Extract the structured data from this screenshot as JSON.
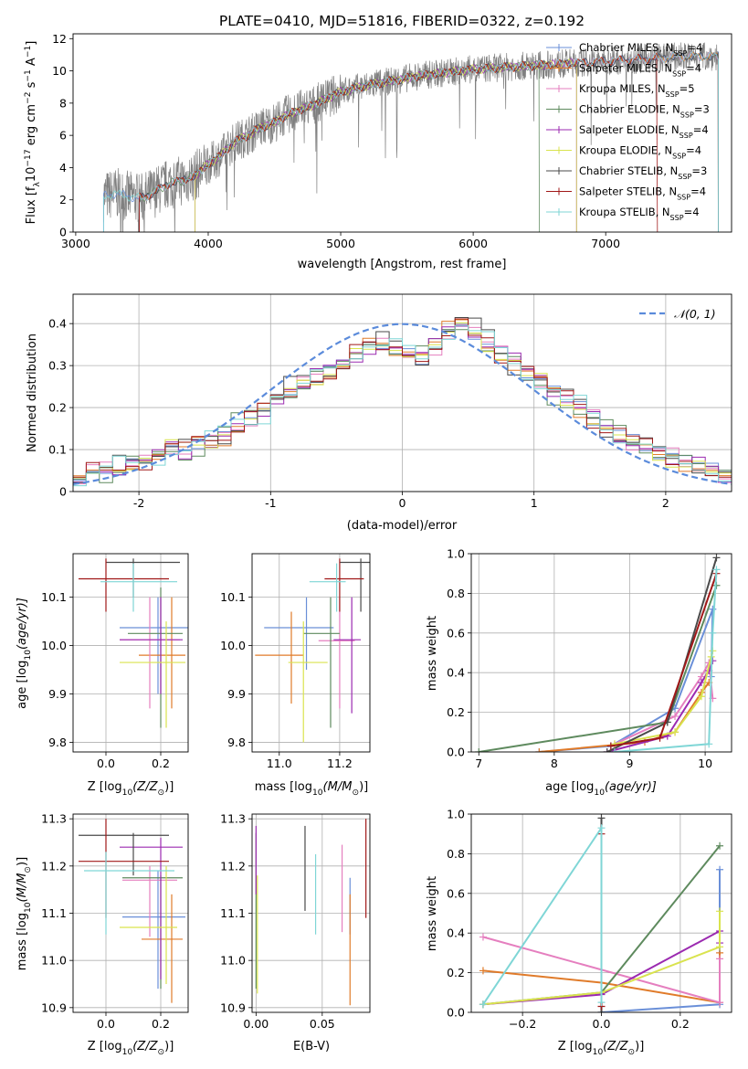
{
  "colors": [
    "#6a8fd8",
    "#e07b2a",
    "#e57fbf",
    "#5e8a5e",
    "#9b2ab0",
    "#d9e34e",
    "#4a4a4a",
    "#a01818",
    "#7fd6d6"
  ],
  "chart_data": [
    {
      "id": "spectrum",
      "type": "line",
      "title": "PLATE=0410, MJD=51816, FIBERID=0322, z=0.192",
      "xlabel": "wavelength [Angstrom, rest frame]",
      "ylabel_parts": {
        "a": "Flux [f",
        "b": "λ",
        "c": "10",
        "d": "−17",
        "e": " erg cm",
        "f": "−2",
        "g": " s",
        "h": "−1",
        "i": " A",
        "j": "−1",
        "k": "]"
      },
      "xlim": [
        2980,
        7950
      ],
      "ylim": [
        0,
        12.3
      ],
      "xticks": [
        3000,
        4000,
        5000,
        6000,
        7000
      ],
      "yticks": [
        0,
        2,
        4,
        6,
        8,
        10,
        12
      ],
      "legend": [
        {
          "name": "Chabrier MILES, N",
          "sub": "SSP",
          "tail": "=4"
        },
        {
          "name": "Salpeter MILES, N",
          "sub": "SSP",
          "tail": "=4"
        },
        {
          "name": "Kroupa MILES, N",
          "sub": "SSP",
          "tail": "=5"
        },
        {
          "name": "Chabrier ELODIE, N",
          "sub": "SSP",
          "tail": "=3"
        },
        {
          "name": "Salpeter ELODIE, N",
          "sub": "SSP",
          "tail": "=4"
        },
        {
          "name": "Kroupa ELODIE, N",
          "sub": "SSP",
          "tail": "=4"
        },
        {
          "name": "Chabrier STELIB, N",
          "sub": "SSP",
          "tail": "=3"
        },
        {
          "name": "Salpeter STELIB, N",
          "sub": "SSP",
          "tail": "=4"
        },
        {
          "name": "Kroupa STELIB, N",
          "sub": "SSP",
          "tail": "=4"
        }
      ],
      "model_x": [
        3200,
        3300,
        3400,
        3500,
        3600,
        3700,
        3800,
        3900,
        4000,
        4100,
        4200,
        4300,
        4400,
        4500,
        4600,
        4700,
        4800,
        4900,
        5000,
        5200,
        5400,
        5600,
        5800,
        6000,
        6200,
        6400,
        6600,
        6800,
        7000,
        7200,
        7400,
        7600,
        7800
      ],
      "model_y": [
        2.2,
        2.4,
        2.2,
        2.1,
        2.5,
        3.0,
        3.2,
        3.5,
        4.2,
        4.8,
        5.6,
        6.0,
        6.5,
        6.8,
        7.3,
        7.6,
        7.9,
        8.3,
        8.7,
        9.1,
        9.4,
        9.7,
        9.9,
        10.1,
        10.2,
        10.3,
        10.4,
        10.5,
        10.6,
        10.7,
        10.8,
        10.9,
        10.9
      ],
      "model_start": [
        3210,
        3480,
        3480,
        3480,
        3900,
        3900,
        3480,
        3480,
        3210
      ],
      "model_end": [
        7850,
        7850,
        7850,
        6500,
        6780,
        6780,
        7850,
        7390,
        7850
      ]
    },
    {
      "id": "residuals",
      "type": "histogram",
      "xlabel": "(data-model)/error",
      "ylabel": "Normed distribution",
      "legend": [
        {
          "name": "𝒩(0, 1)"
        }
      ],
      "xlim": [
        -2.5,
        2.5
      ],
      "ylim": [
        0,
        0.47
      ],
      "xticks": [
        -2,
        -1,
        0,
        1,
        2
      ],
      "yticks": [
        0,
        0.1,
        0.2,
        0.3,
        0.4
      ],
      "bin_width": 0.1,
      "bin_start": -2.5,
      "base_counts": [
        0.045,
        0.05,
        0.05,
        0.055,
        0.065,
        0.075,
        0.09,
        0.11,
        0.1,
        0.11,
        0.12,
        0.135,
        0.155,
        0.18,
        0.19,
        0.22,
        0.235,
        0.26,
        0.27,
        0.29,
        0.31,
        0.33,
        0.35,
        0.35,
        0.335,
        0.33,
        0.32,
        0.35,
        0.38,
        0.39,
        0.38,
        0.355,
        0.33,
        0.31,
        0.285,
        0.265,
        0.235,
        0.22,
        0.2,
        0.175,
        0.15,
        0.135,
        0.12,
        0.105,
        0.09,
        0.08,
        0.07,
        0.06,
        0.05,
        0.04
      ]
    },
    {
      "id": "age_vs_Z",
      "type": "scatter",
      "xlabel_parts": {
        "a": "Z [log",
        "b": "10",
        "c": "(Z/Z",
        "d": "⊙",
        "e": ")]"
      },
      "ylabel_parts": {
        "a": "age  [log",
        "b": "10",
        "c": "(age/yr)]"
      },
      "xlim": [
        -0.12,
        0.3
      ],
      "ylim": [
        9.78,
        10.19
      ],
      "xticks": [
        0.0,
        0.2
      ],
      "xticklabels": [
        "0.0",
        "0.2"
      ],
      "yticks": [
        9.8,
        9.9,
        10.0,
        10.1
      ],
      "yticklabels": [
        "9.8",
        "9.9",
        "10.0",
        "10.1"
      ],
      "points": [
        {
          "x": 0.19,
          "y": 10.037,
          "xe": [
            0.05,
            0.3
          ],
          "ye": [
            9.9,
            10.1
          ]
        },
        {
          "x": 0.24,
          "y": 9.98,
          "xe": [
            0.12,
            0.29
          ],
          "ye": [
            9.87,
            10.1
          ]
        },
        {
          "x": 0.16,
          "y": 10.012,
          "xe": [
            0.05,
            0.27
          ],
          "ye": [
            9.87,
            10.1
          ]
        },
        {
          "x": 0.2,
          "y": 10.025,
          "xe": [
            0.08,
            0.28
          ],
          "ye": [
            9.83,
            10.12
          ]
        },
        {
          "x": 0.2,
          "y": 10.012,
          "xe": [
            0.05,
            0.28
          ],
          "ye": [
            9.9,
            10.1
          ]
        },
        {
          "x": 0.22,
          "y": 9.965,
          "xe": [
            0.05,
            0.29
          ],
          "ye": [
            9.83,
            10.05
          ]
        },
        {
          "x": 0.1,
          "y": 10.172,
          "xe": [
            0.0,
            0.27
          ],
          "ye": [
            10.1,
            10.18
          ]
        },
        {
          "x": 0.0,
          "y": 10.138,
          "xe": [
            -0.1,
            0.23
          ],
          "ye": [
            10.07,
            10.18
          ]
        },
        {
          "x": 0.1,
          "y": 10.132,
          "xe": [
            -0.02,
            0.26
          ],
          "ye": [
            10.07,
            10.17
          ]
        }
      ]
    },
    {
      "id": "age_vs_mass",
      "type": "scatter",
      "xlabel_parts": {
        "a": "mass [log",
        "b": "10",
        "c": "(M/M",
        "d": "⊙",
        "e": ")]"
      },
      "xlim": [
        10.91,
        11.3
      ],
      "ylim": [
        9.78,
        10.19
      ],
      "xticks": [
        11.0,
        11.2
      ],
      "xticklabels": [
        "11.0",
        "11.2"
      ],
      "yticks": [
        9.8,
        9.9,
        10.0,
        10.1
      ],
      "yticklabels": [
        "9.8",
        "9.9",
        "10.0",
        "10.1"
      ],
      "points": [
        {
          "x": 11.09,
          "y": 10.037,
          "xe": [
            10.95,
            11.18
          ],
          "ye": [
            9.95,
            10.1
          ]
        },
        {
          "x": 11.04,
          "y": 9.98,
          "xe": [
            10.92,
            11.08
          ],
          "ye": [
            9.88,
            10.07
          ]
        },
        {
          "x": 11.2,
          "y": 10.01,
          "xe": [
            11.13,
            11.25
          ],
          "ye": [
            9.87,
            10.1
          ]
        },
        {
          "x": 11.17,
          "y": 10.025,
          "xe": [
            11.08,
            11.2
          ],
          "ye": [
            9.83,
            10.1
          ]
        },
        {
          "x": 11.24,
          "y": 10.012,
          "xe": [
            11.18,
            11.27
          ],
          "ye": [
            9.86,
            10.1
          ]
        },
        {
          "x": 11.08,
          "y": 9.965,
          "xe": [
            11.03,
            11.16
          ],
          "ye": [
            9.8,
            10.05
          ]
        },
        {
          "x": 11.27,
          "y": 10.172,
          "xe": [
            11.2,
            11.3
          ],
          "ye": [
            10.07,
            10.18
          ]
        },
        {
          "x": 11.2,
          "y": 10.138,
          "xe": [
            11.15,
            11.28
          ],
          "ye": [
            10.07,
            10.18
          ]
        },
        {
          "x": 11.19,
          "y": 10.132,
          "xe": [
            11.1,
            11.22
          ],
          "ye": [
            10.07,
            10.17
          ]
        }
      ]
    },
    {
      "id": "mass_weight_vs_age",
      "type": "line",
      "xlabel_parts": {
        "a": "age  [log",
        "b": "10",
        "c": "(age/yr)]"
      },
      "ylabel": "mass weight",
      "xlim": [
        6.9,
        10.35
      ],
      "ylim": [
        0,
        1.0
      ],
      "xticks": [
        7,
        8,
        9,
        10
      ],
      "xticklabels": [
        "7",
        "8",
        "9",
        "10"
      ],
      "yticks": [
        0,
        0.2,
        0.4,
        0.6,
        0.8,
        1.0
      ],
      "yticklabels": [
        "0.0",
        "0.2",
        "0.4",
        "0.6",
        "0.8",
        "1.0"
      ],
      "series": [
        {
          "x": [
            7.8,
            8.75,
            9.6,
            10.1,
            10.08
          ],
          "y": [
            0.0,
            0.03,
            0.22,
            0.72,
            0.38
          ]
        },
        {
          "x": [
            7.8,
            9.2,
            9.6,
            9.95,
            10.05
          ],
          "y": [
            0.0,
            0.05,
            0.1,
            0.3,
            0.35
          ]
        },
        {
          "x": [
            8.8,
            9.6,
            9.95,
            10.05,
            10.1
          ],
          "y": [
            0.04,
            0.18,
            0.38,
            0.45,
            0.27
          ]
        },
        {
          "x": [
            7.0,
            9.5,
            10.15
          ],
          "y": [
            0.0,
            0.15,
            0.84
          ]
        },
        {
          "x": [
            8.7,
            9.5,
            9.95,
            10.05,
            10.1
          ],
          "y": [
            0.0,
            0.08,
            0.35,
            0.41,
            0.46
          ]
        },
        {
          "x": [
            8.8,
            9.6,
            9.95,
            10.08,
            10.1
          ],
          "y": [
            0.04,
            0.1,
            0.28,
            0.48,
            0.51
          ]
        },
        {
          "x": [
            8.7,
            9.5,
            10.15
          ],
          "y": [
            0.0,
            0.15,
            0.98
          ]
        },
        {
          "x": [
            8.75,
            9.4,
            10.15
          ],
          "y": [
            0.03,
            0.07,
            0.9
          ]
        },
        {
          "x": [
            8.8,
            10.05,
            10.1,
            10.15
          ],
          "y": [
            0.0,
            0.04,
            0.6,
            0.92
          ]
        }
      ]
    },
    {
      "id": "mass_vs_Z",
      "type": "scatter",
      "xlabel_parts": {
        "a": "Z [log",
        "b": "10",
        "c": "(Z/Z",
        "d": "⊙",
        "e": ")]"
      },
      "ylabel_parts": {
        "a": "mass [log",
        "b": "10",
        "c": "(M/M",
        "d": "⊙",
        "e": ")]"
      },
      "xlim": [
        -0.12,
        0.3
      ],
      "ylim": [
        10.89,
        11.31
      ],
      "xticks": [
        0.0,
        0.2
      ],
      "xticklabels": [
        "0.0",
        "0.2"
      ],
      "yticks": [
        10.9,
        11.0,
        11.1,
        11.2,
        11.3
      ],
      "yticklabels": [
        "10.9",
        "11.0",
        "11.1",
        "11.2",
        "11.3"
      ],
      "points": [
        {
          "x": 0.19,
          "y": 11.092,
          "xe": [
            0.06,
            0.29
          ],
          "ye": [
            10.94,
            11.19
          ]
        },
        {
          "x": 0.24,
          "y": 11.045,
          "xe": [
            0.13,
            0.28
          ],
          "ye": [
            10.91,
            11.14
          ]
        },
        {
          "x": 0.16,
          "y": 11.17,
          "xe": [
            0.06,
            0.26
          ],
          "ye": [
            11.05,
            11.2
          ]
        },
        {
          "x": 0.2,
          "y": 11.175,
          "xe": [
            0.06,
            0.28
          ],
          "ye": [
            10.94,
            11.18
          ]
        },
        {
          "x": 0.2,
          "y": 11.24,
          "xe": [
            0.05,
            0.28
          ],
          "ye": [
            10.96,
            11.26
          ]
        },
        {
          "x": 0.22,
          "y": 11.07,
          "xe": [
            0.05,
            0.26
          ],
          "ye": [
            10.95,
            11.2
          ]
        },
        {
          "x": 0.1,
          "y": 11.265,
          "xe": [
            -0.1,
            0.23
          ],
          "ye": [
            11.18,
            11.27
          ]
        },
        {
          "x": 0.0,
          "y": 11.21,
          "xe": [
            -0.1,
            0.23
          ],
          "ye": [
            11.09,
            11.3
          ]
        },
        {
          "x": 0.0,
          "y": 11.19,
          "xe": [
            -0.08,
            0.25
          ],
          "ye": [
            11.055,
            11.23
          ]
        }
      ]
    },
    {
      "id": "mass_vs_ebv",
      "type": "scatter",
      "xlabel": "E(B-V)",
      "xlim": [
        -0.003,
        0.086
      ],
      "ylim": [
        10.89,
        11.31
      ],
      "xticks": [
        0.0,
        0.05
      ],
      "xticklabels": [
        "0.00",
        "0.05"
      ],
      "yticks": [
        10.9,
        11.0,
        11.1,
        11.2,
        11.3
      ],
      "yticklabels": [
        "10.9",
        "11.0",
        "11.1",
        "11.2",
        "11.3"
      ],
      "points": [
        {
          "x": 0.071,
          "y": 11.1,
          "ye": [
            11.055,
            11.175
          ]
        },
        {
          "x": 0.071,
          "y": 11.02,
          "ye": [
            10.905,
            11.14
          ]
        },
        {
          "x": 0.065,
          "y": 11.2,
          "ye": [
            11.06,
            11.245
          ]
        },
        {
          "x": 0.0,
          "y": 11.12,
          "ye": [
            10.94,
            11.27
          ]
        },
        {
          "x": 0.0,
          "y": 11.2,
          "ye": [
            11.14,
            11.285
          ]
        },
        {
          "x": 0.001,
          "y": 11.08,
          "ye": [
            10.93,
            11.18
          ]
        },
        {
          "x": 0.037,
          "y": 11.19,
          "ye": [
            11.105,
            11.285
          ]
        },
        {
          "x": 0.083,
          "y": 11.2,
          "ye": [
            11.09,
            11.3
          ]
        },
        {
          "x": 0.045,
          "y": 11.14,
          "ye": [
            11.055,
            11.225
          ]
        }
      ]
    },
    {
      "id": "mass_weight_vs_Z",
      "type": "line",
      "xlabel_parts": {
        "a": "Z [log",
        "b": "10",
        "c": "(Z/Z",
        "d": "⊙",
        "e": ")]"
      },
      "ylabel": "mass weight",
      "xlim": [
        -0.33,
        0.33
      ],
      "ylim": [
        0,
        1.0
      ],
      "xticks": [
        -0.2,
        0.0,
        0.2
      ],
      "xticklabels": [
        "−0.2",
        "0.0",
        "0.2"
      ],
      "yticks": [
        0,
        0.2,
        0.4,
        0.6,
        0.8,
        1.0
      ],
      "yticklabels": [
        "0.0",
        "0.2",
        "0.4",
        "0.6",
        "0.8",
        "1.0"
      ],
      "series": [
        {
          "x": [
            0.0,
            0.3,
            0.3
          ],
          "y": [
            0.0,
            0.04,
            0.72
          ]
        },
        {
          "x": [
            -0.3,
            0.0,
            0.3,
            0.3
          ],
          "y": [
            0.21,
            0.15,
            0.05,
            0.3
          ]
        },
        {
          "x": [
            -0.3,
            0.3,
            0.3
          ],
          "y": [
            0.38,
            0.05,
            0.27
          ]
        },
        {
          "x": [
            -0.3,
            0.0,
            0.3
          ],
          "y": [
            0.04,
            0.1,
            0.84
          ]
        },
        {
          "x": [
            -0.3,
            0.0,
            0.3,
            0.3
          ],
          "y": [
            0.04,
            0.09,
            0.41,
            0.35
          ]
        },
        {
          "x": [
            -0.3,
            0.0,
            0.3,
            0.3
          ],
          "y": [
            0.04,
            0.1,
            0.33,
            0.51
          ]
        },
        {
          "x": [
            0.0,
            0.0
          ],
          "y": [
            0.0,
            0.98
          ]
        },
        {
          "x": [
            0.0,
            0.0
          ],
          "y": [
            0.03,
            0.9
          ]
        },
        {
          "x": [
            -0.3,
            0.0,
            0.0
          ],
          "y": [
            0.04,
            0.93,
            0.05
          ]
        }
      ]
    }
  ]
}
